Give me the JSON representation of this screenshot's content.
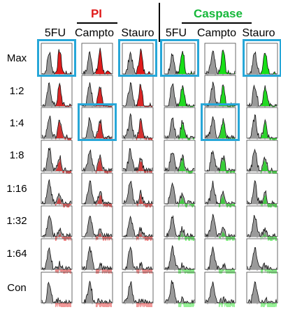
{
  "groups": [
    {
      "title": "PI",
      "color": "#e01b1b"
    },
    {
      "title": "Caspase",
      "color": "#15b83a"
    }
  ],
  "columns": [
    "5FU",
    "Campto",
    "Stauro",
    "5FU",
    "Campto",
    "Stauro"
  ],
  "rows": [
    "Max",
    "1:2",
    "1:4",
    "1:8",
    "1:16",
    "1:32",
    "1:64",
    "Con"
  ],
  "colors": {
    "pi": "#e01b1b",
    "caspase": "#17e017",
    "control_histogram": "#9a9a9a",
    "highlight": "#27a7d8"
  },
  "highlighted_cells": [
    {
      "row": "Max",
      "column": 0
    },
    {
      "row": "Max",
      "column": 2
    },
    {
      "row": "Max",
      "column": 3
    },
    {
      "row": "Max",
      "column": 5
    },
    {
      "row": "1:4",
      "column": 1
    },
    {
      "row": "1:4",
      "column": 4
    }
  ]
}
